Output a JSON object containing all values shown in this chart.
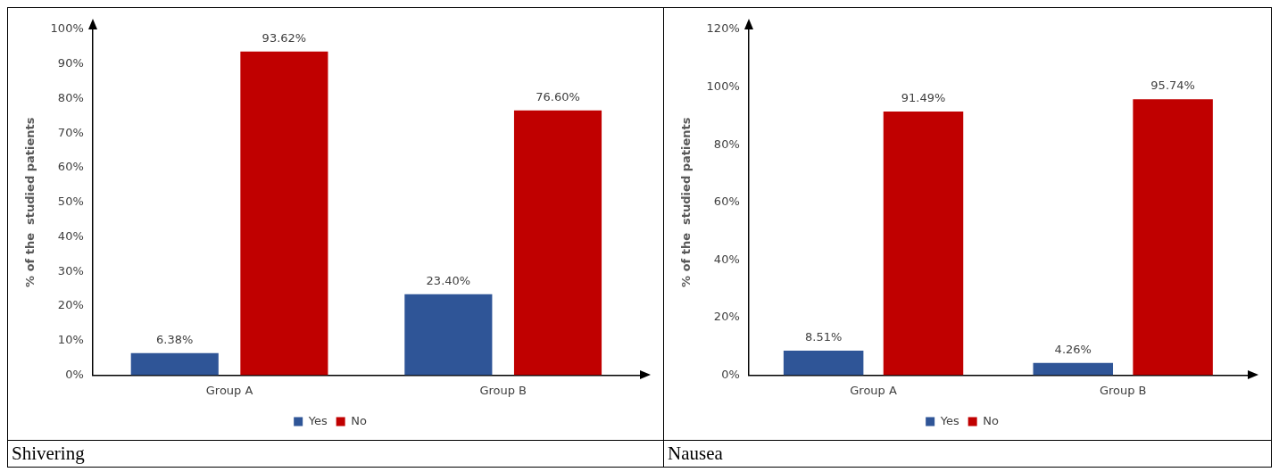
{
  "chart_data": [
    {
      "type": "bar",
      "ylabel": "% of the  studied patients",
      "categories": [
        "Group A",
        "Group B"
      ],
      "series": [
        {
          "name": "Yes",
          "color": "#2f5597",
          "values": [
            6.38,
            23.4
          ],
          "value_labels": [
            "6.38%",
            "23.40%"
          ]
        },
        {
          "name": "No",
          "color": "#c00000",
          "values": [
            93.62,
            76.6
          ],
          "value_labels": [
            "93.62%",
            "76.60%"
          ]
        }
      ],
      "ylim": [
        0,
        100
      ],
      "yticks": [
        {
          "value": 0,
          "label": "0%"
        },
        {
          "value": 10,
          "label": "10%"
        },
        {
          "value": 20,
          "label": "20%"
        },
        {
          "value": 30,
          "label": "30%"
        },
        {
          "value": 40,
          "label": "40%"
        },
        {
          "value": 50,
          "label": "50%"
        },
        {
          "value": 60,
          "label": "60%"
        },
        {
          "value": 70,
          "label": "70%"
        },
        {
          "value": 80,
          "label": "80%"
        },
        {
          "value": 90,
          "label": "90%"
        },
        {
          "value": 100,
          "label": "100%"
        }
      ],
      "grid": false,
      "legend": "bottom",
      "annotations": [
        "Shivering"
      ]
    },
    {
      "type": "bar",
      "ylabel": "% of the  studied patients",
      "categories": [
        "Group A",
        "Group B"
      ],
      "series": [
        {
          "name": "Yes",
          "color": "#2f5597",
          "values": [
            8.51,
            4.26
          ],
          "value_labels": [
            "8.51%",
            "4.26%"
          ]
        },
        {
          "name": "No",
          "color": "#c00000",
          "values": [
            91.49,
            95.74
          ],
          "value_labels": [
            "91.49%",
            "95.74%"
          ]
        }
      ],
      "ylim": [
        0,
        120
      ],
      "yticks": [
        {
          "value": 0,
          "label": "0%"
        },
        {
          "value": 20,
          "label": "20%"
        },
        {
          "value": 40,
          "label": "40%"
        },
        {
          "value": 60,
          "label": "60%"
        },
        {
          "value": 80,
          "label": "80%"
        },
        {
          "value": 100,
          "label": "100%"
        },
        {
          "value": 120,
          "label": "120%"
        }
      ],
      "grid": false,
      "legend": "bottom",
      "annotations": [
        "Nausea"
      ]
    }
  ]
}
